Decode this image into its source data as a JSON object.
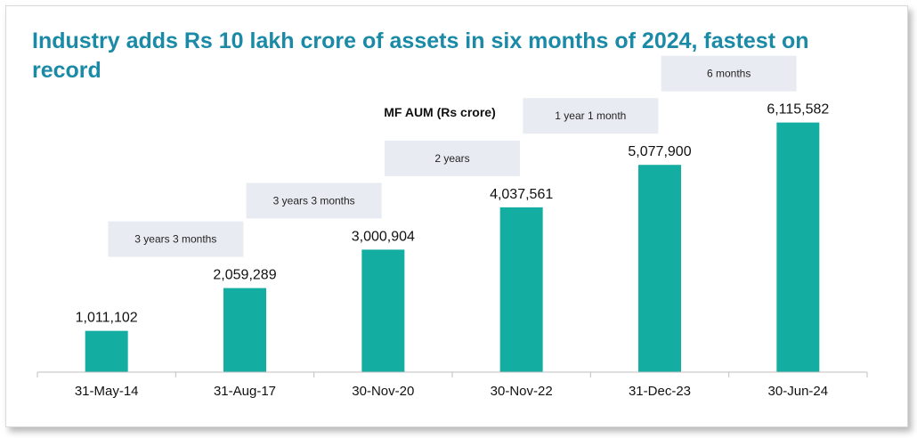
{
  "headline": "Industry adds Rs 10 lakh crore of assets in six months of 2024, fastest on record",
  "colors": {
    "headline": "#1a8aa6",
    "bar": "#14ada1",
    "period_box": "#e8ecf2",
    "axis": "#bfbfbf"
  },
  "chart_data": {
    "type": "bar",
    "title": "MF AUM (Rs crore)",
    "xlabel": "",
    "ylabel": "",
    "categories": [
      "31-May-14",
      "31-Aug-17",
      "30-Nov-20",
      "30-Nov-22",
      "31-Dec-23",
      "30-Jun-24"
    ],
    "values": [
      1011102,
      2059289,
      3000904,
      4037561,
      5077900,
      6115582
    ],
    "value_labels": [
      "1,011,102",
      "2,059,289",
      "3,000,904",
      "4,037,561",
      "5,077,900",
      "6,115,582"
    ],
    "period_annotations": [
      "3 years 3 months",
      "3 years 3 months",
      "2 years",
      "1 year 1 month",
      "6 months"
    ],
    "ylim": [
      0,
      6500000
    ],
    "grid": false,
    "legend": "none"
  }
}
